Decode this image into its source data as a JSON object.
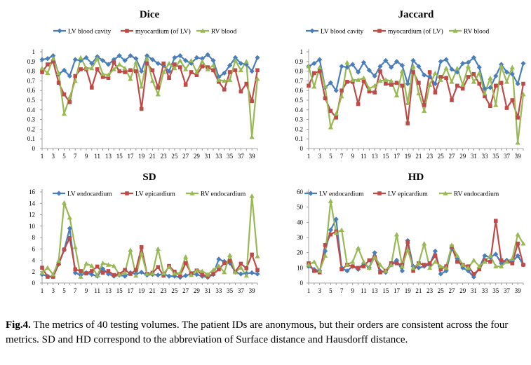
{
  "figure": {
    "caption_label": "Fig.4.",
    "caption_text": " The metrics of 40 testing volumes. The patient IDs are anonymous, but their orders are consistent across the four metrics. SD and HD correspond to the abbreviation of Surface distance and Hausdorff distance."
  },
  "colors": {
    "blue": "#4a7ebb",
    "red": "#be4b48",
    "green": "#98b954"
  },
  "chart_data": [
    {
      "type": "line",
      "title": "Dice",
      "x": [
        1,
        2,
        3,
        4,
        5,
        6,
        7,
        8,
        9,
        10,
        11,
        12,
        13,
        14,
        15,
        16,
        17,
        18,
        19,
        20,
        21,
        22,
        23,
        24,
        25,
        26,
        27,
        28,
        29,
        30,
        31,
        32,
        33,
        34,
        35,
        36,
        37,
        38,
        39,
        40
      ],
      "xticks": [
        "1",
        "3",
        "5",
        "7",
        "9",
        "11",
        "13",
        "15",
        "17",
        "19",
        "21",
        "23",
        "25",
        "27",
        "29",
        "31",
        "33",
        "35",
        "37",
        "39"
      ],
      "ylim": [
        0,
        1
      ],
      "yticks": [
        "0",
        "0.1",
        "0.2",
        "0.3",
        "0.4",
        "0.5",
        "0.6",
        "0.7",
        "0.8",
        "0.9",
        "1"
      ],
      "legend": [
        "LV blood cavity",
        "myocardium (of LV)",
        "RV blood"
      ],
      "series": [
        {
          "name": "LV blood cavity",
          "color": "blue",
          "marker": "diamond",
          "values": [
            0.92,
            0.93,
            0.96,
            0.77,
            0.81,
            0.75,
            0.92,
            0.91,
            0.94,
            0.88,
            0.95,
            0.91,
            0.87,
            0.92,
            0.96,
            0.91,
            0.96,
            0.93,
            0.8,
            0.96,
            0.92,
            0.88,
            0.86,
            0.8,
            0.94,
            0.96,
            0.91,
            0.88,
            0.94,
            0.93,
            0.97,
            0.91,
            0.74,
            0.78,
            0.86,
            0.94,
            0.88,
            0.87,
            0.8,
            0.94
          ]
        },
        {
          "name": "myocardium (of LV)",
          "color": "red",
          "marker": "square",
          "values": [
            0.79,
            0.87,
            0.9,
            0.68,
            0.56,
            0.48,
            0.75,
            0.82,
            0.82,
            0.63,
            0.82,
            0.74,
            0.73,
            0.89,
            0.8,
            0.79,
            0.81,
            0.8,
            0.41,
            0.88,
            0.81,
            0.63,
            0.88,
            0.73,
            0.87,
            0.84,
            0.66,
            0.79,
            0.76,
            0.85,
            0.84,
            0.81,
            0.69,
            0.61,
            0.79,
            0.81,
            0.59,
            0.67,
            0.49,
            0.81
          ]
        },
        {
          "name": "RV blood",
          "color": "green",
          "marker": "triangle",
          "values": [
            0.83,
            0.78,
            0.93,
            0.78,
            0.36,
            0.53,
            0.7,
            0.94,
            0.83,
            0.83,
            0.93,
            0.77,
            0.76,
            0.82,
            0.87,
            0.83,
            0.72,
            0.89,
            0.64,
            0.93,
            0.7,
            0.56,
            0.79,
            0.88,
            0.83,
            0.91,
            0.82,
            0.91,
            0.79,
            0.9,
            0.82,
            0.86,
            0.71,
            0.7,
            0.71,
            0.91,
            0.81,
            0.9,
            0.12,
            0.72
          ]
        }
      ]
    },
    {
      "type": "line",
      "title": "Jaccard",
      "x": [
        1,
        2,
        3,
        4,
        5,
        6,
        7,
        8,
        9,
        10,
        11,
        12,
        13,
        14,
        15,
        16,
        17,
        18,
        19,
        20,
        21,
        22,
        23,
        24,
        25,
        26,
        27,
        28,
        29,
        30,
        31,
        32,
        33,
        34,
        35,
        36,
        37,
        38,
        39,
        40
      ],
      "xticks": [
        "1",
        "3",
        "5",
        "7",
        "9",
        "11",
        "13",
        "15",
        "17",
        "19",
        "21",
        "23",
        "25",
        "27",
        "29",
        "31",
        "33",
        "35",
        "37",
        "39"
      ],
      "ylim": [
        0,
        1
      ],
      "yticks": [
        "0",
        "0.1",
        "0.2",
        "0.3",
        "0.4",
        "0.5",
        "0.6",
        "0.7",
        "0.8",
        "0.9",
        "1"
      ],
      "legend": [
        "LV blood cavity",
        "myocardium (of LV)",
        "RV blood"
      ],
      "series": [
        {
          "name": "LV blood cavity",
          "color": "blue",
          "marker": "diamond",
          "values": [
            0.85,
            0.88,
            0.92,
            0.63,
            0.68,
            0.6,
            0.85,
            0.84,
            0.87,
            0.79,
            0.89,
            0.81,
            0.75,
            0.85,
            0.91,
            0.84,
            0.9,
            0.86,
            0.67,
            0.91,
            0.85,
            0.76,
            0.74,
            0.67,
            0.9,
            0.92,
            0.82,
            0.79,
            0.88,
            0.89,
            0.94,
            0.84,
            0.62,
            0.63,
            0.75,
            0.87,
            0.79,
            0.77,
            0.67,
            0.88
          ]
        },
        {
          "name": "myocardium (of LV)",
          "color": "red",
          "marker": "square",
          "values": [
            0.65,
            0.78,
            0.8,
            0.52,
            0.39,
            0.32,
            0.6,
            0.69,
            0.69,
            0.46,
            0.7,
            0.59,
            0.58,
            0.8,
            0.67,
            0.66,
            0.68,
            0.65,
            0.26,
            0.79,
            0.68,
            0.45,
            0.79,
            0.58,
            0.74,
            0.73,
            0.5,
            0.65,
            0.62,
            0.74,
            0.77,
            0.67,
            0.54,
            0.44,
            0.65,
            0.68,
            0.42,
            0.5,
            0.32,
            0.67
          ]
        },
        {
          "name": "RV blood",
          "color": "green",
          "marker": "triangle",
          "values": [
            0.85,
            0.64,
            0.84,
            0.64,
            0.22,
            0.36,
            0.54,
            0.89,
            0.71,
            0.71,
            0.73,
            0.62,
            0.65,
            0.7,
            0.71,
            0.7,
            0.55,
            0.8,
            0.47,
            0.85,
            0.57,
            0.39,
            0.66,
            0.78,
            0.71,
            0.83,
            0.69,
            0.83,
            0.66,
            0.85,
            0.69,
            0.78,
            0.57,
            0.73,
            0.45,
            0.85,
            0.69,
            0.84,
            0.06,
            0.56
          ]
        }
      ]
    },
    {
      "type": "line",
      "title": "SD",
      "x": [
        1,
        2,
        3,
        4,
        5,
        6,
        7,
        8,
        9,
        10,
        11,
        12,
        13,
        14,
        15,
        16,
        17,
        18,
        19,
        20,
        21,
        22,
        23,
        24,
        25,
        26,
        27,
        28,
        29,
        30,
        31,
        32,
        33,
        34,
        35,
        36,
        37,
        38,
        39,
        40
      ],
      "xticks": [
        "1",
        "3",
        "5",
        "7",
        "9",
        "11",
        "13",
        "15",
        "17",
        "19",
        "21",
        "23",
        "25",
        "27",
        "29",
        "31",
        "33",
        "35",
        "37",
        "39"
      ],
      "ylim": [
        0,
        16
      ],
      "yticks": [
        "0",
        "2",
        "4",
        "6",
        "8",
        "10",
        "12",
        "14",
        "16"
      ],
      "legend": [
        "LV endocardium",
        "LV epicardium",
        "RV endocardium"
      ],
      "series": [
        {
          "name": "LV endocardium",
          "color": "blue",
          "marker": "diamond",
          "values": [
            1.5,
            1.2,
            1.1,
            3.3,
            5.8,
            9.6,
            1.8,
            1.4,
            1.8,
            1.5,
            1.2,
            2.5,
            1.6,
            1.2,
            1.4,
            1.2,
            1.8,
            1.6,
            1.9,
            1.4,
            1.5,
            1.4,
            1.6,
            1.2,
            1.2,
            1.0,
            1.3,
            1.6,
            1.5,
            1.2,
            1.0,
            1.5,
            4.2,
            3.8,
            3.5,
            1.9,
            1.6,
            1.7,
            1.8,
            1.6
          ]
        },
        {
          "name": "LV epicardium",
          "color": "red",
          "marker": "square",
          "values": [
            2.7,
            1.1,
            1.1,
            3.4,
            5.9,
            7.9,
            2.4,
            2.1,
            1.7,
            2.1,
            2.9,
            1.8,
            2.1,
            1.4,
            1.6,
            2.3,
            1.6,
            2.3,
            6.3,
            1.6,
            1.8,
            2.8,
            1.3,
            3.0,
            2.0,
            1.3,
            3.5,
            1.7,
            2.2,
            1.5,
            1.2,
            1.6,
            2.4,
            3.5,
            3.9,
            2.0,
            3.4,
            2.6,
            5.0,
            2.3
          ]
        },
        {
          "name": "RV endocardium",
          "color": "green",
          "marker": "triangle",
          "values": [
            1.8,
            2.7,
            1.5,
            3.9,
            14.1,
            11.5,
            6.3,
            1.1,
            3.4,
            3.0,
            1.3,
            3.5,
            3.2,
            3.0,
            1.5,
            1.8,
            5.8,
            1.3,
            5.2,
            1.6,
            1.7,
            6.0,
            1.7,
            2.8,
            1.7,
            1.8,
            4.6,
            1.4,
            2.2,
            2.1,
            1.5,
            2.3,
            3.0,
            1.9,
            4.9,
            1.9,
            2.7,
            1.3,
            15.3,
            4.7
          ]
        }
      ]
    },
    {
      "type": "line",
      "title": "HD",
      "x": [
        1,
        2,
        3,
        4,
        5,
        6,
        7,
        8,
        9,
        10,
        11,
        12,
        13,
        14,
        15,
        16,
        17,
        18,
        19,
        20,
        21,
        22,
        23,
        24,
        25,
        26,
        27,
        28,
        29,
        30,
        31,
        32,
        33,
        34,
        35,
        36,
        37,
        38,
        39,
        40
      ],
      "xticks": [
        "1",
        "3",
        "5",
        "7",
        "9",
        "11",
        "13",
        "15",
        "17",
        "19",
        "21",
        "23",
        "25",
        "27",
        "29",
        "31",
        "33",
        "35",
        "37",
        "39"
      ],
      "ylim": [
        0,
        60
      ],
      "yticks": [
        "0",
        "10",
        "20",
        "30",
        "40",
        "50",
        "60"
      ],
      "legend": [
        "LV endocardium",
        "LV epicardium",
        "RV endocardium"
      ],
      "series": [
        {
          "name": "LV endocardium",
          "color": "blue",
          "marker": "diamond",
          "values": [
            11,
            9,
            8,
            21,
            35,
            42,
            10,
            8,
            11,
            9,
            13,
            10,
            20,
            8,
            7,
            12,
            15,
            8,
            28,
            11,
            10,
            11,
            12,
            21,
            6,
            8,
            23,
            16,
            10,
            8,
            4,
            10,
            18,
            17,
            19,
            13,
            15,
            14,
            18,
            12
          ]
        },
        {
          "name": "LV epicardium",
          "color": "red",
          "marker": "square",
          "values": [
            13,
            8,
            7,
            25,
            32,
            34,
            9,
            12,
            11,
            10,
            11,
            15,
            17,
            7,
            8,
            13,
            13,
            12,
            27,
            8,
            13,
            12,
            13,
            18,
            9,
            11,
            24,
            14,
            12,
            11,
            6,
            9,
            15,
            14,
            41,
            15,
            14,
            13,
            26,
            12
          ]
        },
        {
          "name": "RV endocardium",
          "color": "green",
          "marker": "triangle",
          "values": [
            12,
            14,
            8,
            18,
            54,
            33,
            35,
            12,
            14,
            23,
            14,
            10,
            17,
            12,
            8,
            12,
            32,
            11,
            22,
            10,
            13,
            26,
            10,
            14,
            11,
            10,
            25,
            18,
            12,
            10,
            15,
            11,
            14,
            18,
            11,
            11,
            14,
            16,
            32,
            26
          ]
        }
      ]
    }
  ]
}
